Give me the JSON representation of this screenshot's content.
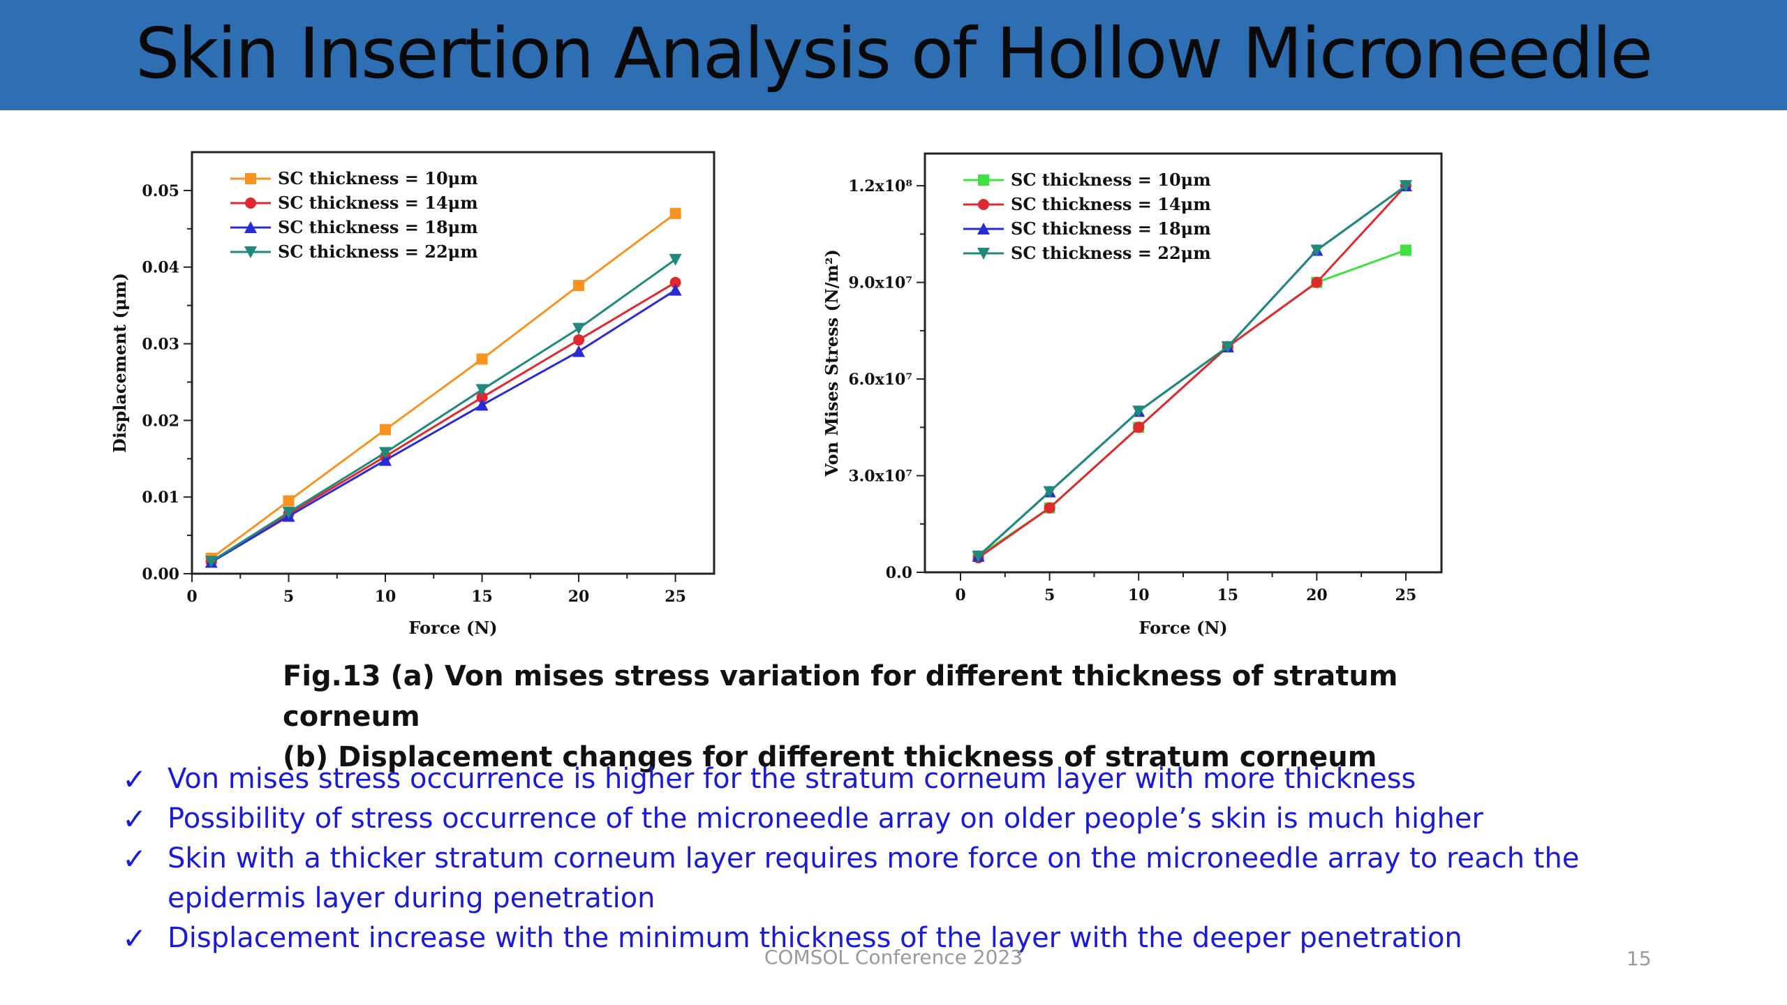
{
  "slide": {
    "title": "Skin Insertion Analysis of Hollow Microneedle",
    "caption_line1": "Fig.13 (a) Von mises stress variation for different thickness of stratum corneum",
    "caption_line2": "(b) Displacement changes for different thickness of stratum corneum",
    "bullets": [
      "Von mises stress occurrence is higher for the stratum corneum layer with more thickness",
      "Possibility of stress occurrence of the microneedle array on older people’s skin is much higher",
      "Skin with a thicker stratum corneum layer requires more force on the microneedle array to reach the epidermis layer during penetration",
      "Displacement increase with the minimum thickness of the layer with the deeper penetration"
    ],
    "check_symbol": "✓",
    "footer": "COMSOL Conference 2023",
    "page_number": "15",
    "colors": {
      "header_bg": "#2e6fb3",
      "bullet_text": "#1a1adc"
    }
  },
  "chart_data": [
    {
      "type": "line",
      "xlabel": "Force (N)",
      "ylabel": "Displacement (μm)",
      "xlim": [
        0,
        27
      ],
      "ylim": [
        0,
        0.055
      ],
      "xticks": [
        0,
        5,
        10,
        15,
        20,
        25
      ],
      "xtick_labels": [
        "0",
        "5",
        "10",
        "15",
        "20",
        "25"
      ],
      "yticks": [
        0,
        0.01,
        0.02,
        0.03,
        0.04,
        0.05
      ],
      "ytick_labels": [
        "0.00",
        "0.01",
        "0.02",
        "0.03",
        "0.04",
        "0.05"
      ],
      "legend_position": "top-left",
      "x": [
        1,
        5,
        10,
        15,
        20,
        25
      ],
      "series": [
        {
          "name": "SC thickness = 10μm",
          "color": "#f7931e",
          "marker": "square",
          "values": [
            0.002,
            0.0095,
            0.0188,
            0.028,
            0.0376,
            0.047
          ]
        },
        {
          "name": "SC thickness = 14μm",
          "color": "#e0282e",
          "marker": "circle",
          "values": [
            0.0016,
            0.0078,
            0.0153,
            0.023,
            0.0305,
            0.038
          ]
        },
        {
          "name": "SC thickness = 18μm",
          "color": "#2b2bd6",
          "marker": "triangle-up",
          "values": [
            0.0015,
            0.0075,
            0.0148,
            0.022,
            0.029,
            0.037
          ]
        },
        {
          "name": "SC thickness = 22μm",
          "color": "#1f8a7a",
          "marker": "triangle-down",
          "values": [
            0.0016,
            0.008,
            0.0158,
            0.024,
            0.032,
            0.041
          ]
        }
      ]
    },
    {
      "type": "line",
      "xlabel": "Force (N)",
      "ylabel": "Von Mises Stress (N/m²)",
      "xlim": [
        -2,
        27
      ],
      "ylim": [
        0,
        130000000
      ],
      "xticks": [
        0,
        5,
        10,
        15,
        20,
        25
      ],
      "xtick_labels": [
        "0",
        "5",
        "10",
        "15",
        "20",
        "25"
      ],
      "yticks": [
        0,
        30000000,
        60000000,
        90000000,
        120000000
      ],
      "ytick_labels": [
        "0.0",
        "3.0x10⁷",
        "6.0x10⁷",
        "9.0x10⁷",
        "1.2x10⁸"
      ],
      "legend_position": "top-left",
      "x": [
        1,
        5,
        10,
        15,
        20,
        25
      ],
      "series": [
        {
          "name": "SC thickness = 10μm",
          "color": "#3fe03f",
          "marker": "square",
          "values": [
            5000000,
            20000000,
            45000000,
            70000000,
            90000000,
            100000000
          ]
        },
        {
          "name": "SC thickness = 14μm",
          "color": "#e0282e",
          "marker": "circle",
          "values": [
            4500000,
            20000000,
            45000000,
            70000000,
            90000000,
            120000000
          ]
        },
        {
          "name": "SC thickness = 18μm",
          "color": "#2b2bd6",
          "marker": "triangle-up",
          "values": [
            5000000,
            25000000,
            50000000,
            70000000,
            100000000,
            120000000
          ]
        },
        {
          "name": "SC thickness = 22μm",
          "color": "#1f8a7a",
          "marker": "triangle-down",
          "values": [
            5000000,
            25000000,
            50000000,
            70000000,
            100000000,
            120000000
          ]
        }
      ]
    }
  ]
}
